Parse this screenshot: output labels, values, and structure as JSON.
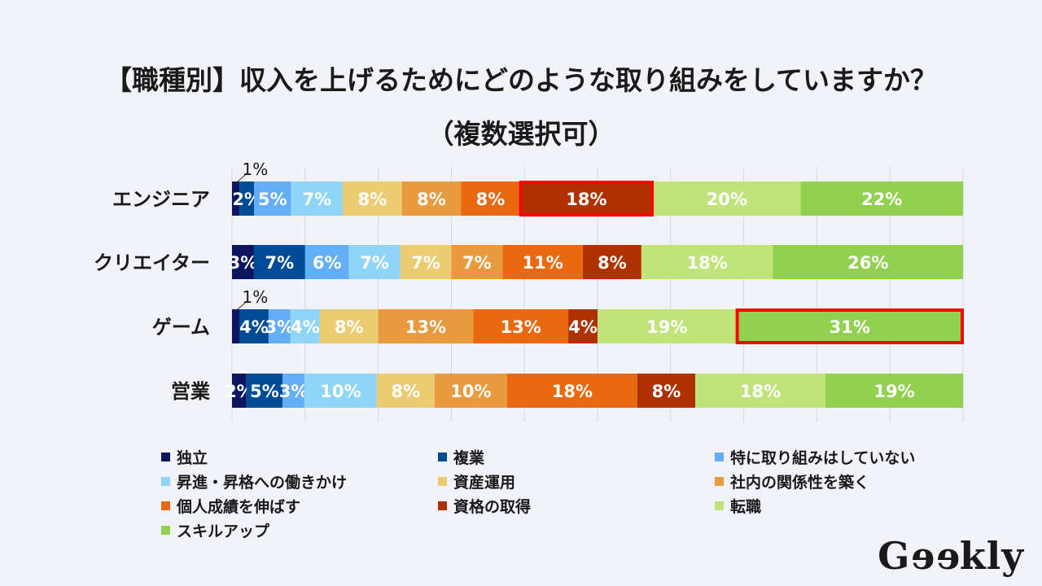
{
  "chart_data": {
    "type": "bar",
    "stacked": true,
    "orientation": "horizontal",
    "title": "【職種別】収入を上げるためにどのような取り組みをしていますか？",
    "subtitle": "（複数選択可）",
    "categories": [
      "エンジニア",
      "クリエイター",
      "ゲーム",
      "営業"
    ],
    "unit": "%",
    "xlim": [
      0,
      100
    ],
    "grid": true,
    "legend_position": "bottom",
    "series": [
      {
        "name": "独立",
        "color": "#0b1560",
        "values": [
          1,
          3,
          1,
          2
        ]
      },
      {
        "name": "複業",
        "color": "#004b96",
        "values": [
          2,
          7,
          4,
          5
        ]
      },
      {
        "name": "特に取り組みはしていない",
        "color": "#64aef7",
        "values": [
          5,
          6,
          3,
          3
        ]
      },
      {
        "name": "昇進・昇格への働きかけ",
        "color": "#8fd5f8",
        "values": [
          7,
          7,
          4,
          10
        ]
      },
      {
        "name": "資産運用",
        "color": "#ebcc72",
        "values": [
          8,
          7,
          8,
          8
        ]
      },
      {
        "name": "社内の関係性を築く",
        "color": "#ea9a3e",
        "values": [
          8,
          7,
          13,
          10
        ]
      },
      {
        "name": "個人成績を伸ばす",
        "color": "#e8690f",
        "values": [
          8,
          11,
          13,
          18
        ]
      },
      {
        "name": "資格の取得",
        "color": "#b03100",
        "values": [
          18,
          8,
          4,
          8
        ]
      },
      {
        "name": "転職",
        "color": "#c1e47a",
        "values": [
          20,
          18,
          19,
          18
        ]
      },
      {
        "name": "スキルアップ",
        "color": "#92d050",
        "values": [
          22,
          26,
          31,
          19
        ]
      }
    ],
    "highlights": [
      {
        "category": "エンジニア",
        "series": "資格の取得"
      },
      {
        "category": "ゲーム",
        "series": "スキルアップ"
      }
    ]
  },
  "highlight_color": "#ff0000",
  "logo": "Geekly"
}
